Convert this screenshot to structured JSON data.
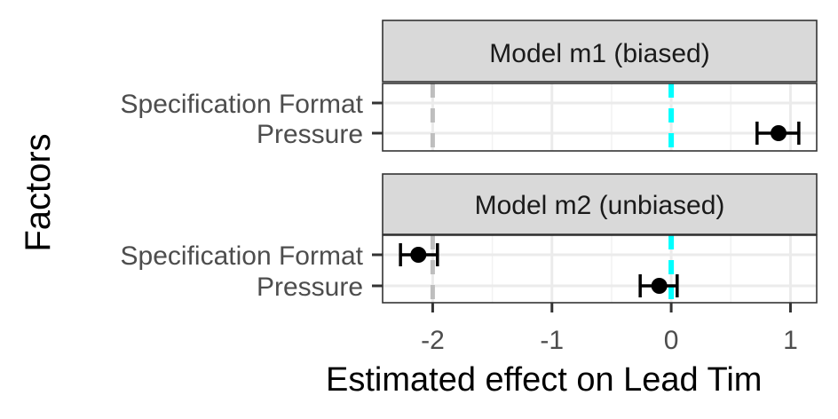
{
  "chart_data": {
    "type": "scatter",
    "subtype": "forest-plot-with-error-bars",
    "ylabel": "Factors",
    "xlabel": "Estimated effect on Lead Tim",
    "xlim": [
      -2.42,
      1.22
    ],
    "x_ticks": [
      -2,
      -1,
      0,
      1
    ],
    "x_tick_labels": [
      "-2",
      "-1",
      "0",
      "1"
    ],
    "categories": [
      "Specification Format",
      "Pressure"
    ],
    "grid": true,
    "reference_lines": [
      {
        "x": 0,
        "color": "#00FFFF",
        "style": "dashed"
      },
      {
        "x": -2,
        "color": "#BEBEBE",
        "style": "dashed"
      }
    ],
    "panels": [
      {
        "title": "Model m1 (biased)",
        "points": [
          {
            "category": "Pressure",
            "estimate": 0.9,
            "lower": 0.72,
            "upper": 1.07
          }
        ]
      },
      {
        "title": "Model m2 (unbiased)",
        "points": [
          {
            "category": "Specification Format",
            "estimate": -2.12,
            "lower": -2.27,
            "upper": -1.96
          },
          {
            "category": "Pressure",
            "estimate": -0.1,
            "lower": -0.26,
            "upper": 0.05
          }
        ]
      }
    ]
  }
}
